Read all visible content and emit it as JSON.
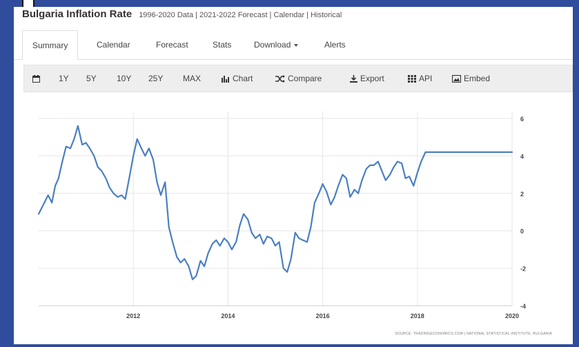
{
  "header": {
    "title": "Bulgaria Inflation Rate",
    "subtitle": "1996-2020 Data | 2021-2022 Forecast | Calendar | Historical"
  },
  "tabs": [
    {
      "label": "Summary",
      "active": true
    },
    {
      "label": "Calendar"
    },
    {
      "label": "Forecast"
    },
    {
      "label": "Stats"
    },
    {
      "label": "Download"
    },
    {
      "label": "Alerts"
    }
  ],
  "toolbar": {
    "ranges": [
      "1Y",
      "5Y",
      "10Y",
      "25Y",
      "MAX"
    ],
    "chart_label": "Chart",
    "compare_label": "Compare",
    "export_label": "Export",
    "api_label": "API",
    "embed_label": "Embed",
    "icons": [
      "calendar-icon",
      "bar-chart-icon",
      "shuffle-icon",
      "download-icon",
      "grid-icon",
      "image-icon"
    ]
  },
  "chart_data": {
    "type": "line",
    "x_tick_labels": [
      "2012",
      "2014",
      "2016",
      "2018",
      "2020"
    ],
    "y_tick_labels": [
      "6",
      "4",
      "2",
      "0",
      "-2",
      "-4"
    ],
    "ylim": [
      -4,
      6
    ],
    "xlim": [
      2010.0,
      2020.0
    ],
    "grid": true,
    "line_color": "#4a7fc1",
    "source": "SOURCE: TRADINGECONOMICS.COM | NATIONAL STATISTICAL INSTITUTE, BULGARIA",
    "series": [
      {
        "x": [
          2010.0,
          2010.1,
          2010.2,
          2010.28,
          2010.35,
          2010.42,
          2010.5,
          2010.58,
          2010.67,
          2010.75,
          2010.83,
          2010.92,
          2011.0,
          2011.08,
          2011.17,
          2011.25,
          2011.33,
          2011.42,
          2011.5,
          2011.58,
          2011.67,
          2011.75,
          2011.83,
          2011.92,
          2012.0,
          2012.08,
          2012.17,
          2012.25,
          2012.33,
          2012.42,
          2012.5,
          2012.58,
          2012.67,
          2012.75,
          2012.83,
          2012.92,
          2013.0,
          2013.08,
          2013.17,
          2013.25,
          2013.33,
          2013.42,
          2013.5,
          2013.58,
          2013.67,
          2013.75,
          2013.83,
          2013.92,
          2014.0,
          2014.08,
          2014.17,
          2014.25,
          2014.33,
          2014.42,
          2014.5,
          2014.58,
          2014.67,
          2014.75,
          2014.83,
          2014.92,
          2015.0,
          2015.08,
          2015.17,
          2015.25,
          2015.33,
          2015.42,
          2015.5,
          2015.58,
          2015.67,
          2015.75,
          2015.83,
          2015.92,
          2016.0,
          2016.08,
          2016.17,
          2016.25,
          2016.33,
          2016.42,
          2016.5,
          2016.58,
          2016.67,
          2016.75,
          2016.83,
          2016.92,
          2017.0,
          2017.08,
          2017.17,
          2017.25,
          2017.33,
          2017.42,
          2017.5,
          2017.58,
          2017.67,
          2017.75,
          2017.83,
          2017.92,
          2018.0,
          2018.08,
          2018.17,
          2018.25,
          2018.33,
          2018.42,
          2018.5,
          2018.58,
          2018.67,
          2018.75,
          2018.83,
          2018.92,
          2019.0,
          2019.08,
          2019.17,
          2019.25,
          2019.33,
          2019.42,
          2019.5,
          2019.58,
          2019.67,
          2019.75,
          2019.83,
          2019.92,
          2020.0
        ],
        "y": [
          0.9,
          1.4,
          1.9,
          1.5,
          2.4,
          2.8,
          3.7,
          4.5,
          4.4,
          4.9,
          5.6,
          4.6,
          4.7,
          4.4,
          4.0,
          3.4,
          3.2,
          2.8,
          2.3,
          2.0,
          1.8,
          1.9,
          1.7,
          2.9,
          4.0,
          4.9,
          4.4,
          4.0,
          4.4,
          3.8,
          2.6,
          1.9,
          2.6,
          0.2,
          -0.6,
          -1.4,
          -1.7,
          -1.5,
          -1.9,
          -2.6,
          -2.4,
          -1.6,
          -1.9,
          -1.2,
          -0.7,
          -0.5,
          -0.8,
          -0.4,
          -0.6,
          -1.0,
          -0.6,
          0.3,
          0.9,
          0.6,
          -0.1,
          -0.4,
          -0.2,
          -0.7,
          -0.3,
          -0.4,
          -0.8,
          -0.6,
          -2.0,
          -2.2,
          -1.5,
          -0.1,
          -0.4,
          -0.5,
          -0.6,
          0.2,
          1.5,
          2.0,
          2.5,
          2.1,
          1.4,
          1.8,
          2.4,
          3.0,
          2.8,
          1.8,
          2.2,
          2.0,
          2.7,
          3.3,
          3.5,
          3.5,
          3.7,
          3.2,
          2.7,
          3.0,
          3.4,
          3.7,
          3.6,
          2.8,
          2.9,
          2.4,
          3.1,
          3.7,
          4.2,
          4.2,
          4.2,
          4.2,
          4.2,
          4.2,
          4.2,
          4.2,
          4.2,
          4.2,
          4.2,
          4.2,
          4.2,
          4.2,
          4.2,
          4.2,
          4.2,
          4.2,
          4.2,
          4.2,
          4.2,
          4.2,
          4.2
        ]
      }
    ]
  }
}
